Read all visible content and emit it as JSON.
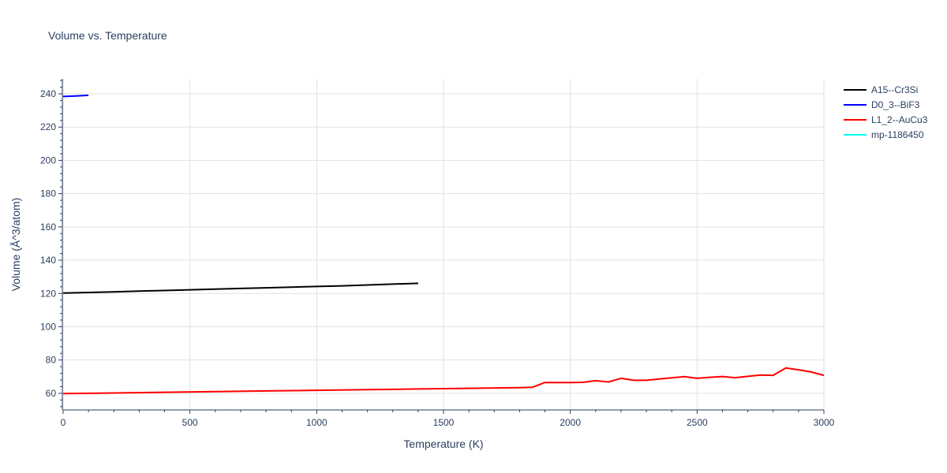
{
  "chart_data": {
    "type": "line",
    "title": "Volume vs. Temperature",
    "xlabel": "Temperature (K)",
    "ylabel": "Volume (Å^3/atom)",
    "xlim": [
      0,
      3000
    ],
    "ylim": [
      50,
      249
    ],
    "xticks": [
      0,
      500,
      1000,
      1500,
      2000,
      2500,
      3000
    ],
    "yticks": [
      60,
      80,
      100,
      120,
      140,
      160,
      180,
      200,
      220,
      240
    ],
    "grid": true,
    "legend_position": "top-right",
    "series": [
      {
        "name": "A15--Cr3Si",
        "color": "#000000",
        "x": [
          0,
          100,
          200,
          300,
          400,
          500,
          600,
          700,
          800,
          900,
          1000,
          1100,
          1200,
          1300,
          1400
        ],
        "y": [
          120.2,
          120.6,
          121.0,
          121.4,
          121.8,
          122.2,
          122.6,
          123.0,
          123.4,
          123.8,
          124.2,
          124.6,
          125.1,
          125.6,
          126.1
        ]
      },
      {
        "name": "D0_3--BiF3",
        "color": "#0000ff",
        "x": [
          0,
          50,
          100
        ],
        "y": [
          238.4,
          238.7,
          239.1
        ]
      },
      {
        "name": "L1_2--AuCu3",
        "color": "#ff0000",
        "x": [
          0,
          200,
          400,
          600,
          800,
          1000,
          1200,
          1400,
          1600,
          1800,
          1850,
          1900,
          1950,
          2000,
          2050,
          2100,
          2150,
          2200,
          2250,
          2300,
          2350,
          2400,
          2450,
          2500,
          2550,
          2600,
          2650,
          2700,
          2750,
          2800,
          2850,
          2900,
          2950,
          3000
        ],
        "y": [
          59.8,
          60.2,
          60.6,
          61.0,
          61.4,
          61.8,
          62.2,
          62.6,
          63.0,
          63.4,
          63.6,
          66.5,
          66.5,
          66.5,
          66.6,
          67.6,
          66.8,
          69.0,
          67.8,
          67.8,
          68.6,
          69.3,
          70.0,
          69.0,
          69.6,
          70.1,
          69.4,
          70.2,
          71.0,
          70.8,
          75.2,
          74.1,
          72.8,
          70.8
        ]
      },
      {
        "name": "mp-1186450",
        "color": "#00ffff",
        "x": [],
        "y": []
      }
    ]
  }
}
